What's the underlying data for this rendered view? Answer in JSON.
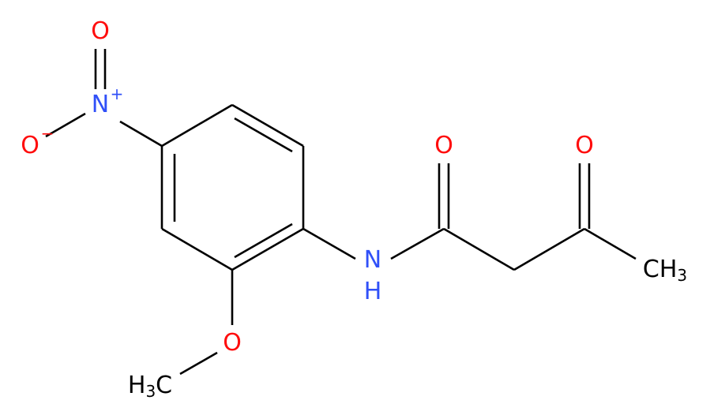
{
  "nodes": [
    {
      "label": "O"
    },
    {
      "label": "N",
      "charge": "+"
    },
    {
      "label": "O",
      "charge": "−"
    },
    {
      "label": "O"
    },
    {
      "label": "H3C"
    },
    {
      "label": "N"
    },
    {
      "label": "H"
    },
    {
      "label": "O"
    },
    {
      "label": "O"
    },
    {
      "label": "CH3"
    }
  ]
}
